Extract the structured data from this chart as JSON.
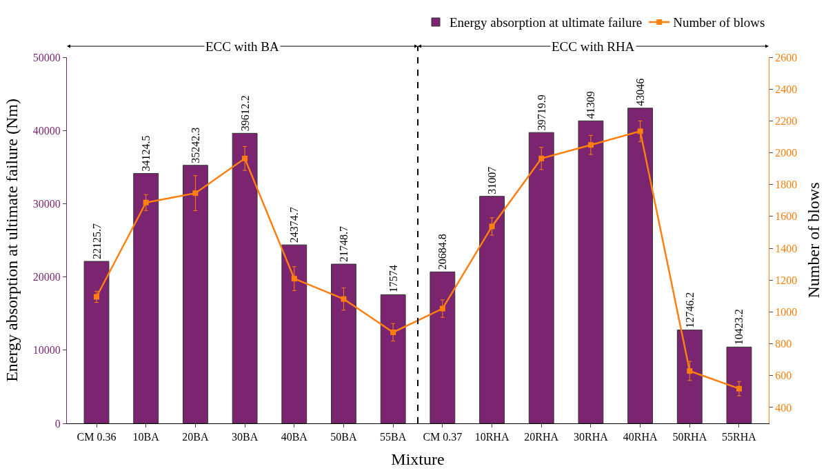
{
  "chart_data": {
    "type": "bar",
    "xlabel": "Mixture",
    "ylabel": "Energy absorption at ultimate failure (Nm)",
    "y2label": "Number of blows",
    "categories": [
      "CM 0.36",
      "10BA",
      "20BA",
      "30BA",
      "40BA",
      "50BA",
      "55BA",
      "CM 0.37",
      "10RHA",
      "20RHA",
      "30RHA",
      "40RHA",
      "50RHA",
      "55RHA"
    ],
    "series": [
      {
        "name": "Energy absorption at ultimate failure",
        "color": "#7b2570",
        "values": [
          22125.7,
          34124.5,
          35242.3,
          39612.2,
          24374.7,
          21748.7,
          17574,
          20684.8,
          31007,
          39719.9,
          41309,
          43046,
          12746.2,
          10423.2
        ],
        "value_labels": [
          "22125.7",
          "34124.5",
          "35242.3",
          "39612.2",
          "24374.7",
          "21748.7",
          "17574",
          "20684.8",
          "31007",
          "39719.9",
          "41309",
          "43046",
          "12746.2",
          "10423.2"
        ]
      },
      {
        "name": "Number of blows",
        "type": "line",
        "axis": "y2",
        "color": "#ff7f0e",
        "marker": "square",
        "values": [
          1095,
          1687,
          1746,
          1964,
          1209,
          1081,
          872,
          1021,
          1537,
          1964,
          2049,
          2135,
          629,
          518
        ],
        "errors": [
          35,
          50,
          110,
          75,
          75,
          70,
          55,
          55,
          55,
          70,
          60,
          65,
          60,
          45
        ]
      }
    ],
    "ylim": [
      0,
      50000
    ],
    "yticks": [
      0,
      10000,
      20000,
      30000,
      40000,
      50000
    ],
    "y2lim": [
      300,
      2600
    ],
    "y2ticks": [
      400,
      600,
      800,
      1000,
      1200,
      1400,
      1600,
      1800,
      2000,
      2200,
      2400,
      2600
    ],
    "annotations": [
      "ECC with BA",
      "ECC with RHA"
    ],
    "legend": "top right"
  }
}
